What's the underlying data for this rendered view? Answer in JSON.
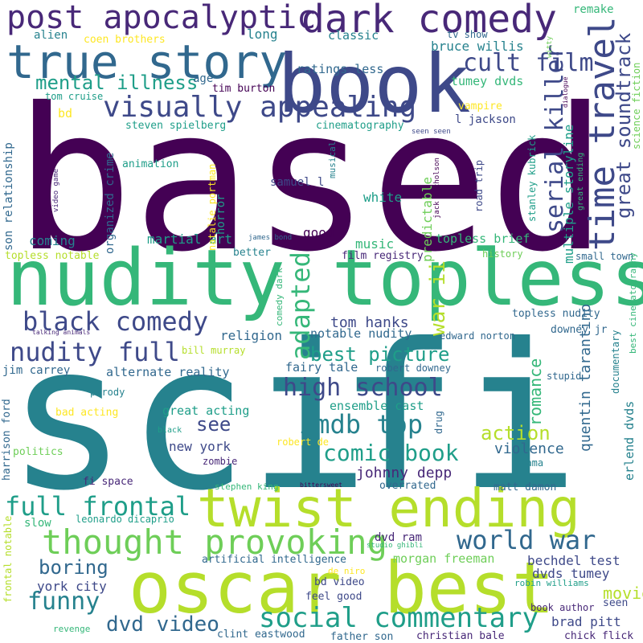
{
  "words": {
    "based": "based",
    "sci": "sci",
    "fi": "fi",
    "nudity_topless": "nudity topless",
    "book": "book",
    "oscar_best": "oscar best",
    "twist_ending": "twist ending",
    "true_story": "true story",
    "dark_comedy": "dark comedy",
    "post_apocalyptic": "post apocalyptic",
    "time_travel": "time travel",
    "visually_appealing": "visually appealing",
    "thought_provoking": "thought provoking",
    "social_commentary": "social commentary",
    "black_comedy": "black comedy",
    "nudity_full": "nudity full",
    "full_frontal": "full frontal",
    "world_war": "world war",
    "imdb_top": "imdb top",
    "high_school": "high school",
    "comic_book": "comic book",
    "funny": "funny",
    "dvd_video": "dvd video",
    "mental_illness": "mental illness",
    "cult_film": "cult film",
    "serial_killer": "serial killer",
    "great_soundtrack": "great soundtrack",
    "adapted": "adapted",
    "war_ii": "war ii",
    "best_picture": "best picture",
    "boring": "boring",
    "york_city": "york city",
    "see": "see",
    "action": "action",
    "romance": "romance",
    "movie": "movie",
    "quentin_tarantino": "quentin tarantino",
    "multiple_storyline": "multiple storyline",
    "predictable": "predictable",
    "tom_hanks": "tom hanks",
    "johnny_depp": "johnny depp",
    "violence": "violence",
    "brad_pitt": "brad pitt",
    "bechdel_test": "bechdel test",
    "dvds_tumey": "dvds tumey",
    "morgan_freeman": "morgan freeman",
    "erlend_dvds": "erlend dvds",
    "alternate_reality": "alternate reality",
    "great_acting": "great acting",
    "new_york": "new york",
    "ensemble_cast": "ensemble cast",
    "fairy_tale": "fairy tale",
    "religion": "religion",
    "notable_nudity": "notable nudity",
    "martial_art": "martial art",
    "music": "music",
    "topless_brief": "topless brief",
    "bruce_willis": "bruce willis",
    "tumey_dvds": "tumey dvds",
    "ratings_less": "ratings less",
    "classic": "classic",
    "long": "long",
    "alien": "alien",
    "remake": "remake",
    "coen_brothers": "coen brothers",
    "tv_show": "tv show",
    "witty": "witty",
    "age": "age",
    "tim_burton": "tim burton",
    "tom_cruise": "tom cruise",
    "bd": "bd",
    "steven_spielberg": "steven spielberg",
    "cinematography": "cinematography",
    "l_jackson": "l jackson",
    "vampire": "vampire",
    "dialogue": "dialogue",
    "science_fiction": "science fiction",
    "seen_seen": "seen seen",
    "organized_crime": "organized crime",
    "son_relationship": "son relationship",
    "animation": "animation",
    "samuel_l": "samuel l",
    "natalie_portman": "natalie portman",
    "horror": "horror",
    "musical": "musical",
    "jack_nicholson": "jack nicholson",
    "road_trip": "road trip",
    "stanley_kubrick": "stanley kubrick",
    "great_ending": "great ending",
    "video_game": "video game",
    "white": "white",
    "coming": "coming",
    "good": "good",
    "james_bond": "james bond",
    "topless_notable": "topless notable",
    "better": "better",
    "film_registry": "film registry",
    "history": "history",
    "small_town": "small town",
    "comedy_dark": "comedy dark",
    "best_cinematography": "best cinematography",
    "topless_nudity": "topless nudity",
    "talking_animals": "talking animals",
    "edward_norton": "edward norton",
    "downey_jr": "downey jr",
    "documentary": "documentary",
    "bill_murray": "bill murray",
    "jim_carrey": "jim carrey",
    "robert_downey": "robert downey",
    "stupid": "stupid",
    "parody": "parody",
    "bad_acting": "bad acting",
    "drug": "drug",
    "black": "black",
    "harrison_ford": "harrison ford",
    "politics": "politics",
    "robert_de": "robert de",
    "zombie": "zombie",
    "drama": "drama",
    "fi_space": "fi space",
    "stephen_king": "stephen king",
    "bittersweet": "bittersweet",
    "overrated": "overrated",
    "matt_damon": "matt damon",
    "slow": "slow",
    "leonardo_dicaprio": "leonardo dicaprio",
    "dvd_ram": "dvd ram",
    "frontal_notable": "frontal notable",
    "artificial_intelligence": "artificial intelligence",
    "studio_ghibli": "studio ghibli",
    "de_niro": "de niro",
    "robin_williams": "robin williams",
    "bd_video": "bd video",
    "feel_good": "feel good",
    "seen": "seen",
    "book_author": "book author",
    "revenge": "revenge",
    "clint_eastwood": "clint eastwood",
    "father_son": "father son",
    "christian_bale": "christian bale",
    "chick_flick": "chick flick"
  },
  "colors": {
    "dark_purple": "#440154",
    "purple": "#482878",
    "indigo": "#3e4989",
    "blue": "#31688e",
    "teal": "#26828e",
    "sea": "#1f9e89",
    "green": "#35b779",
    "lime": "#6ece58",
    "yellow_green": "#b5de2b",
    "yellow": "#fde725"
  }
}
